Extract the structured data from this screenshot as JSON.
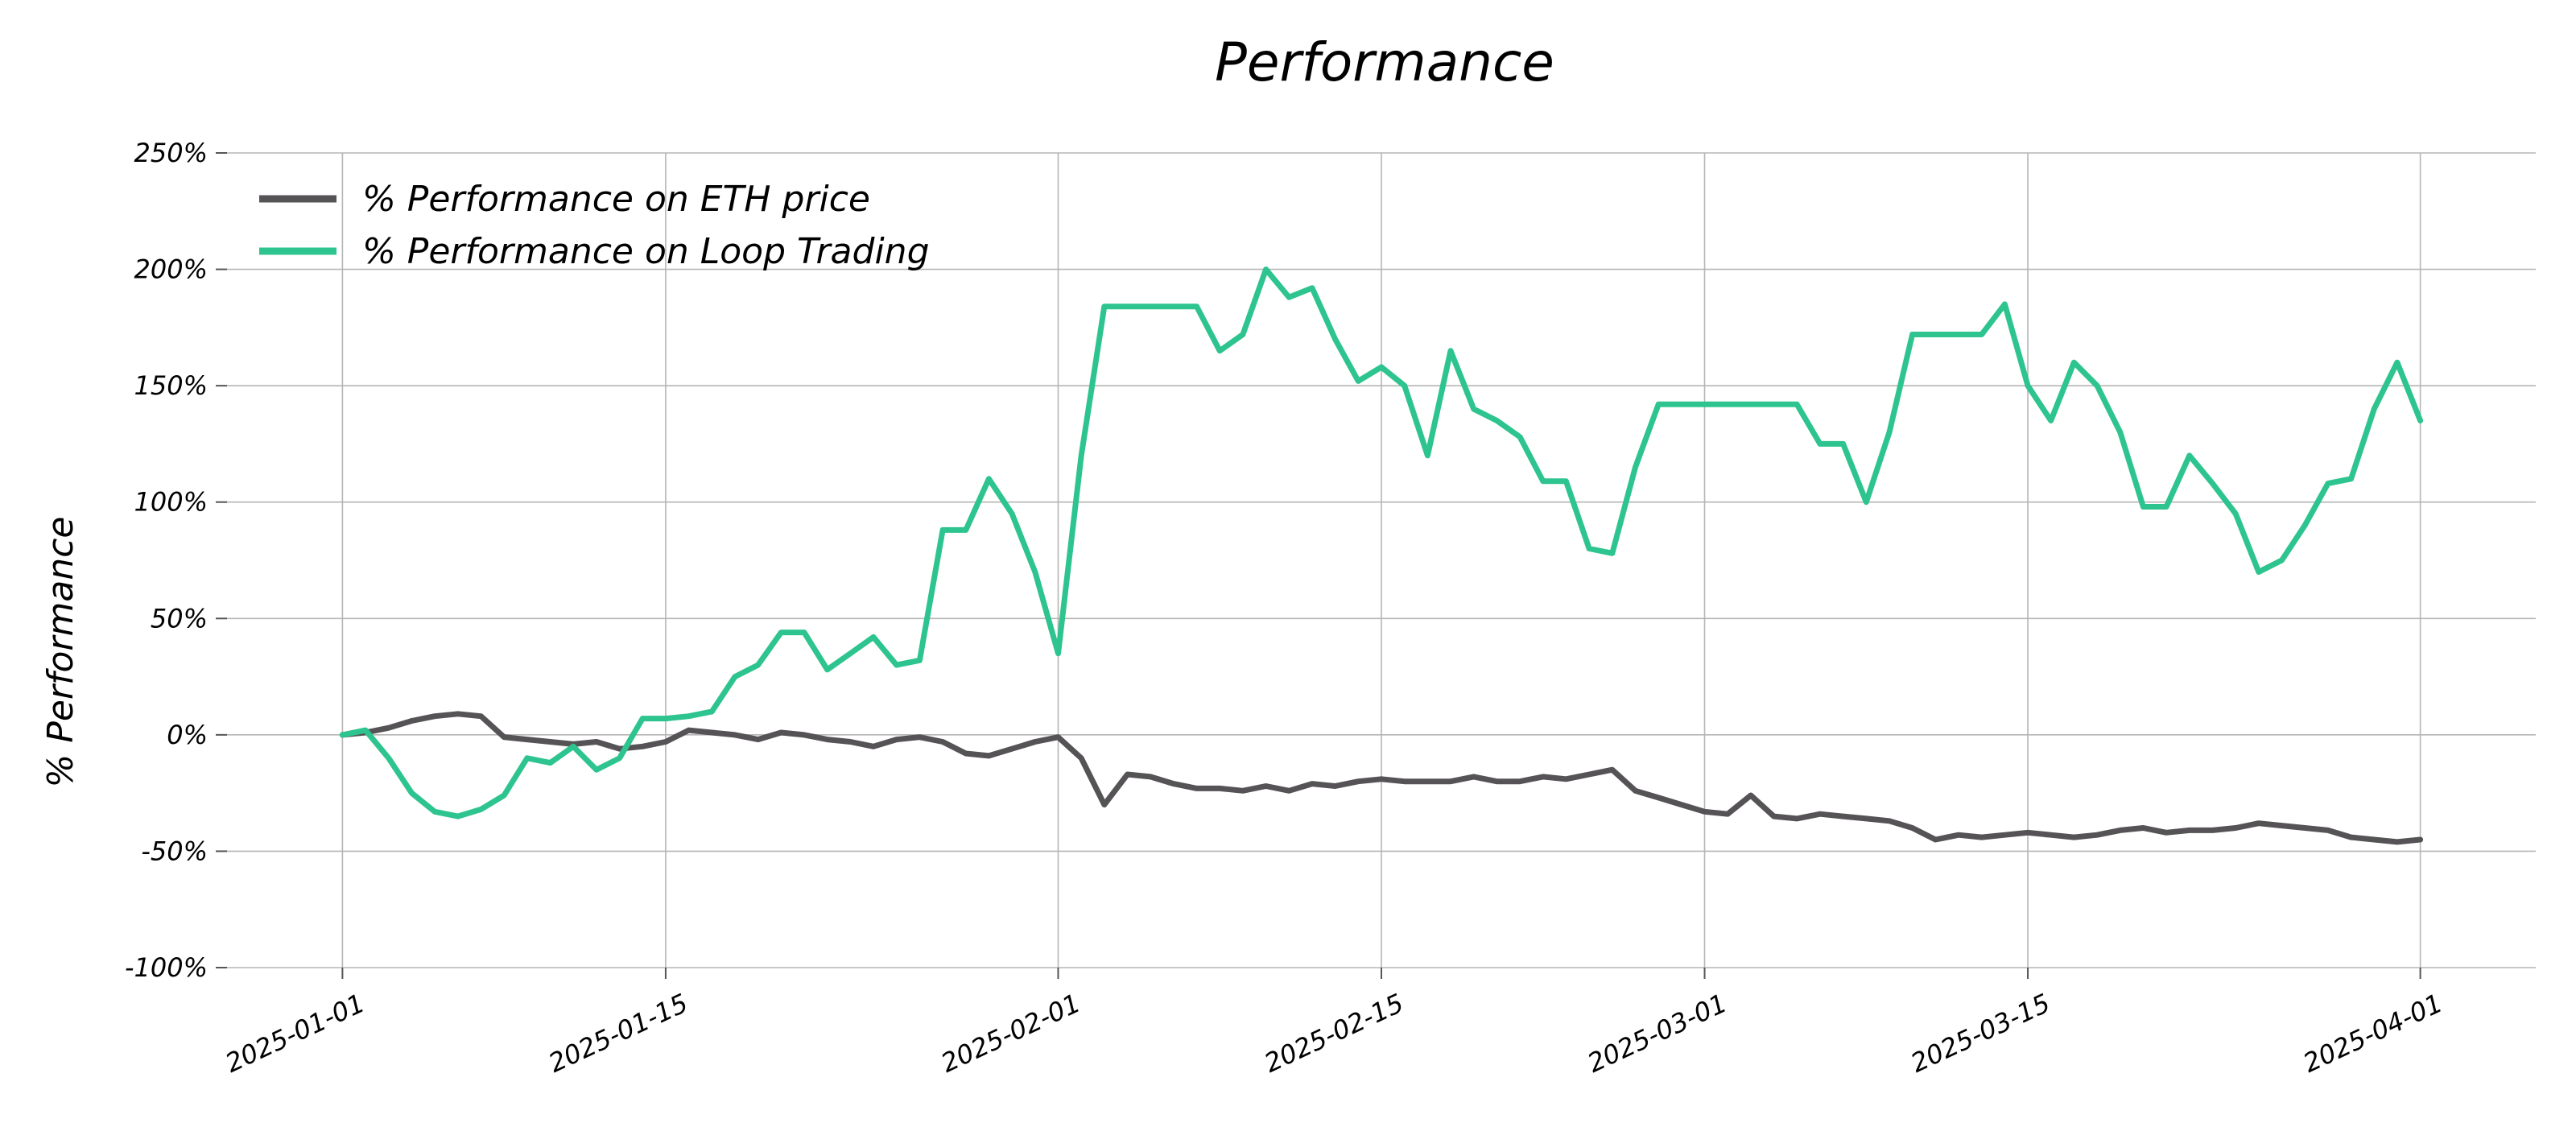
{
  "chart_data": {
    "type": "line",
    "title": "Performance",
    "xlabel": "",
    "ylabel": "% Performance",
    "x_ticks": [
      "2025-01-01",
      "2025-01-15",
      "2025-02-01",
      "2025-02-15",
      "2025-03-01",
      "2025-03-15",
      "2025-04-01"
    ],
    "x_range": [
      "2024-12-27",
      "2025-04-06"
    ],
    "y_ticks": [
      "250%",
      "200%",
      "150%",
      "100%",
      "50%",
      "0%",
      "-50%",
      "-100%"
    ],
    "ylim": [
      -100,
      250
    ],
    "grid": true,
    "legend_position": "top-left",
    "series": [
      {
        "name": "% Performance on ETH price",
        "color": "#555355",
        "points": [
          [
            "2025-01-01",
            0
          ],
          [
            "2025-01-02",
            1
          ],
          [
            "2025-01-03",
            3
          ],
          [
            "2025-01-04",
            6
          ],
          [
            "2025-01-05",
            8
          ],
          [
            "2025-01-06",
            9
          ],
          [
            "2025-01-07",
            8
          ],
          [
            "2025-01-08",
            -1
          ],
          [
            "2025-01-09",
            -2
          ],
          [
            "2025-01-10",
            -3
          ],
          [
            "2025-01-11",
            -4
          ],
          [
            "2025-01-12",
            -3
          ],
          [
            "2025-01-13",
            -6
          ],
          [
            "2025-01-14",
            -5
          ],
          [
            "2025-01-15",
            -3
          ],
          [
            "2025-01-16",
            2
          ],
          [
            "2025-01-17",
            1
          ],
          [
            "2025-01-18",
            0
          ],
          [
            "2025-01-19",
            -2
          ],
          [
            "2025-01-20",
            1
          ],
          [
            "2025-01-21",
            0
          ],
          [
            "2025-01-22",
            -2
          ],
          [
            "2025-01-23",
            -3
          ],
          [
            "2025-01-24",
            -5
          ],
          [
            "2025-01-25",
            -2
          ],
          [
            "2025-01-26",
            -1
          ],
          [
            "2025-01-27",
            -3
          ],
          [
            "2025-01-28",
            -8
          ],
          [
            "2025-01-29",
            -9
          ],
          [
            "2025-01-30",
            -6
          ],
          [
            "2025-01-31",
            -3
          ],
          [
            "2025-02-01",
            -1
          ],
          [
            "2025-02-02",
            -10
          ],
          [
            "2025-02-03",
            -30
          ],
          [
            "2025-02-04",
            -17
          ],
          [
            "2025-02-05",
            -18
          ],
          [
            "2025-02-06",
            -21
          ],
          [
            "2025-02-07",
            -23
          ],
          [
            "2025-02-08",
            -23
          ],
          [
            "2025-02-09",
            -24
          ],
          [
            "2025-02-10",
            -22
          ],
          [
            "2025-02-11",
            -24
          ],
          [
            "2025-02-12",
            -21
          ],
          [
            "2025-02-13",
            -22
          ],
          [
            "2025-02-14",
            -20
          ],
          [
            "2025-02-15",
            -19
          ],
          [
            "2025-02-16",
            -20
          ],
          [
            "2025-02-17",
            -20
          ],
          [
            "2025-02-18",
            -20
          ],
          [
            "2025-02-19",
            -18
          ],
          [
            "2025-02-20",
            -20
          ],
          [
            "2025-02-21",
            -20
          ],
          [
            "2025-02-22",
            -18
          ],
          [
            "2025-02-23",
            -19
          ],
          [
            "2025-02-24",
            -17
          ],
          [
            "2025-02-25",
            -15
          ],
          [
            "2025-02-26",
            -24
          ],
          [
            "2025-02-27",
            -27
          ],
          [
            "2025-02-28",
            -30
          ],
          [
            "2025-03-01",
            -33
          ],
          [
            "2025-03-02",
            -34
          ],
          [
            "2025-03-03",
            -26
          ],
          [
            "2025-03-04",
            -35
          ],
          [
            "2025-03-05",
            -36
          ],
          [
            "2025-03-06",
            -34
          ],
          [
            "2025-03-07",
            -35
          ],
          [
            "2025-03-08",
            -36
          ],
          [
            "2025-03-09",
            -37
          ],
          [
            "2025-03-10",
            -40
          ],
          [
            "2025-03-11",
            -45
          ],
          [
            "2025-03-12",
            -43
          ],
          [
            "2025-03-13",
            -44
          ],
          [
            "2025-03-14",
            -43
          ],
          [
            "2025-03-15",
            -42
          ],
          [
            "2025-03-16",
            -43
          ],
          [
            "2025-03-17",
            -44
          ],
          [
            "2025-03-18",
            -43
          ],
          [
            "2025-03-19",
            -41
          ],
          [
            "2025-03-20",
            -40
          ],
          [
            "2025-03-21",
            -42
          ],
          [
            "2025-03-22",
            -41
          ],
          [
            "2025-03-23",
            -41
          ],
          [
            "2025-03-24",
            -40
          ],
          [
            "2025-03-25",
            -38
          ],
          [
            "2025-03-26",
            -39
          ],
          [
            "2025-03-27",
            -40
          ],
          [
            "2025-03-28",
            -41
          ],
          [
            "2025-03-29",
            -44
          ],
          [
            "2025-03-30",
            -45
          ],
          [
            "2025-03-31",
            -46
          ],
          [
            "2025-04-01",
            -45
          ]
        ]
      },
      {
        "name": "% Performance on Loop Trading",
        "color": "#2ec48f",
        "points": [
          [
            "2025-01-01",
            0
          ],
          [
            "2025-01-02",
            2
          ],
          [
            "2025-01-03",
            -10
          ],
          [
            "2025-01-04",
            -25
          ],
          [
            "2025-01-05",
            -33
          ],
          [
            "2025-01-06",
            -35
          ],
          [
            "2025-01-07",
            -32
          ],
          [
            "2025-01-08",
            -26
          ],
          [
            "2025-01-09",
            -10
          ],
          [
            "2025-01-10",
            -12
          ],
          [
            "2025-01-11",
            -5
          ],
          [
            "2025-01-12",
            -15
          ],
          [
            "2025-01-13",
            -10
          ],
          [
            "2025-01-14",
            7
          ],
          [
            "2025-01-15",
            7
          ],
          [
            "2025-01-16",
            8
          ],
          [
            "2025-01-17",
            10
          ],
          [
            "2025-01-18",
            25
          ],
          [
            "2025-01-19",
            30
          ],
          [
            "2025-01-20",
            44
          ],
          [
            "2025-01-21",
            44
          ],
          [
            "2025-01-22",
            28
          ],
          [
            "2025-01-23",
            35
          ],
          [
            "2025-01-24",
            42
          ],
          [
            "2025-01-25",
            30
          ],
          [
            "2025-01-26",
            32
          ],
          [
            "2025-01-27",
            88
          ],
          [
            "2025-01-28",
            88
          ],
          [
            "2025-01-29",
            110
          ],
          [
            "2025-01-30",
            95
          ],
          [
            "2025-01-31",
            70
          ],
          [
            "2025-02-01",
            35
          ],
          [
            "2025-02-02",
            120
          ],
          [
            "2025-02-03",
            184
          ],
          [
            "2025-02-04",
            184
          ],
          [
            "2025-02-05",
            184
          ],
          [
            "2025-02-06",
            184
          ],
          [
            "2025-02-07",
            184
          ],
          [
            "2025-02-08",
            165
          ],
          [
            "2025-02-09",
            172
          ],
          [
            "2025-02-10",
            200
          ],
          [
            "2025-02-11",
            188
          ],
          [
            "2025-02-12",
            192
          ],
          [
            "2025-02-13",
            170
          ],
          [
            "2025-02-14",
            152
          ],
          [
            "2025-02-15",
            158
          ],
          [
            "2025-02-16",
            150
          ],
          [
            "2025-02-17",
            120
          ],
          [
            "2025-02-18",
            165
          ],
          [
            "2025-02-19",
            140
          ],
          [
            "2025-02-20",
            135
          ],
          [
            "2025-02-21",
            128
          ],
          [
            "2025-02-22",
            109
          ],
          [
            "2025-02-23",
            109
          ],
          [
            "2025-02-24",
            80
          ],
          [
            "2025-02-25",
            78
          ],
          [
            "2025-02-26",
            115
          ],
          [
            "2025-02-27",
            142
          ],
          [
            "2025-02-28",
            142
          ],
          [
            "2025-03-01",
            142
          ],
          [
            "2025-03-02",
            142
          ],
          [
            "2025-03-03",
            142
          ],
          [
            "2025-03-04",
            142
          ],
          [
            "2025-03-05",
            142
          ],
          [
            "2025-03-06",
            125
          ],
          [
            "2025-03-07",
            125
          ],
          [
            "2025-03-08",
            100
          ],
          [
            "2025-03-09",
            130
          ],
          [
            "2025-03-10",
            172
          ],
          [
            "2025-03-11",
            172
          ],
          [
            "2025-03-12",
            172
          ],
          [
            "2025-03-13",
            172
          ],
          [
            "2025-03-14",
            185
          ],
          [
            "2025-03-15",
            150
          ],
          [
            "2025-03-16",
            135
          ],
          [
            "2025-03-17",
            160
          ],
          [
            "2025-03-18",
            150
          ],
          [
            "2025-03-19",
            130
          ],
          [
            "2025-03-20",
            98
          ],
          [
            "2025-03-21",
            98
          ],
          [
            "2025-03-22",
            120
          ],
          [
            "2025-03-23",
            108
          ],
          [
            "2025-03-24",
            95
          ],
          [
            "2025-03-25",
            70
          ],
          [
            "2025-03-26",
            75
          ],
          [
            "2025-03-27",
            90
          ],
          [
            "2025-03-28",
            108
          ],
          [
            "2025-03-29",
            110
          ],
          [
            "2025-03-30",
            140
          ],
          [
            "2025-03-31",
            160
          ],
          [
            "2025-04-01",
            135
          ]
        ]
      }
    ]
  }
}
